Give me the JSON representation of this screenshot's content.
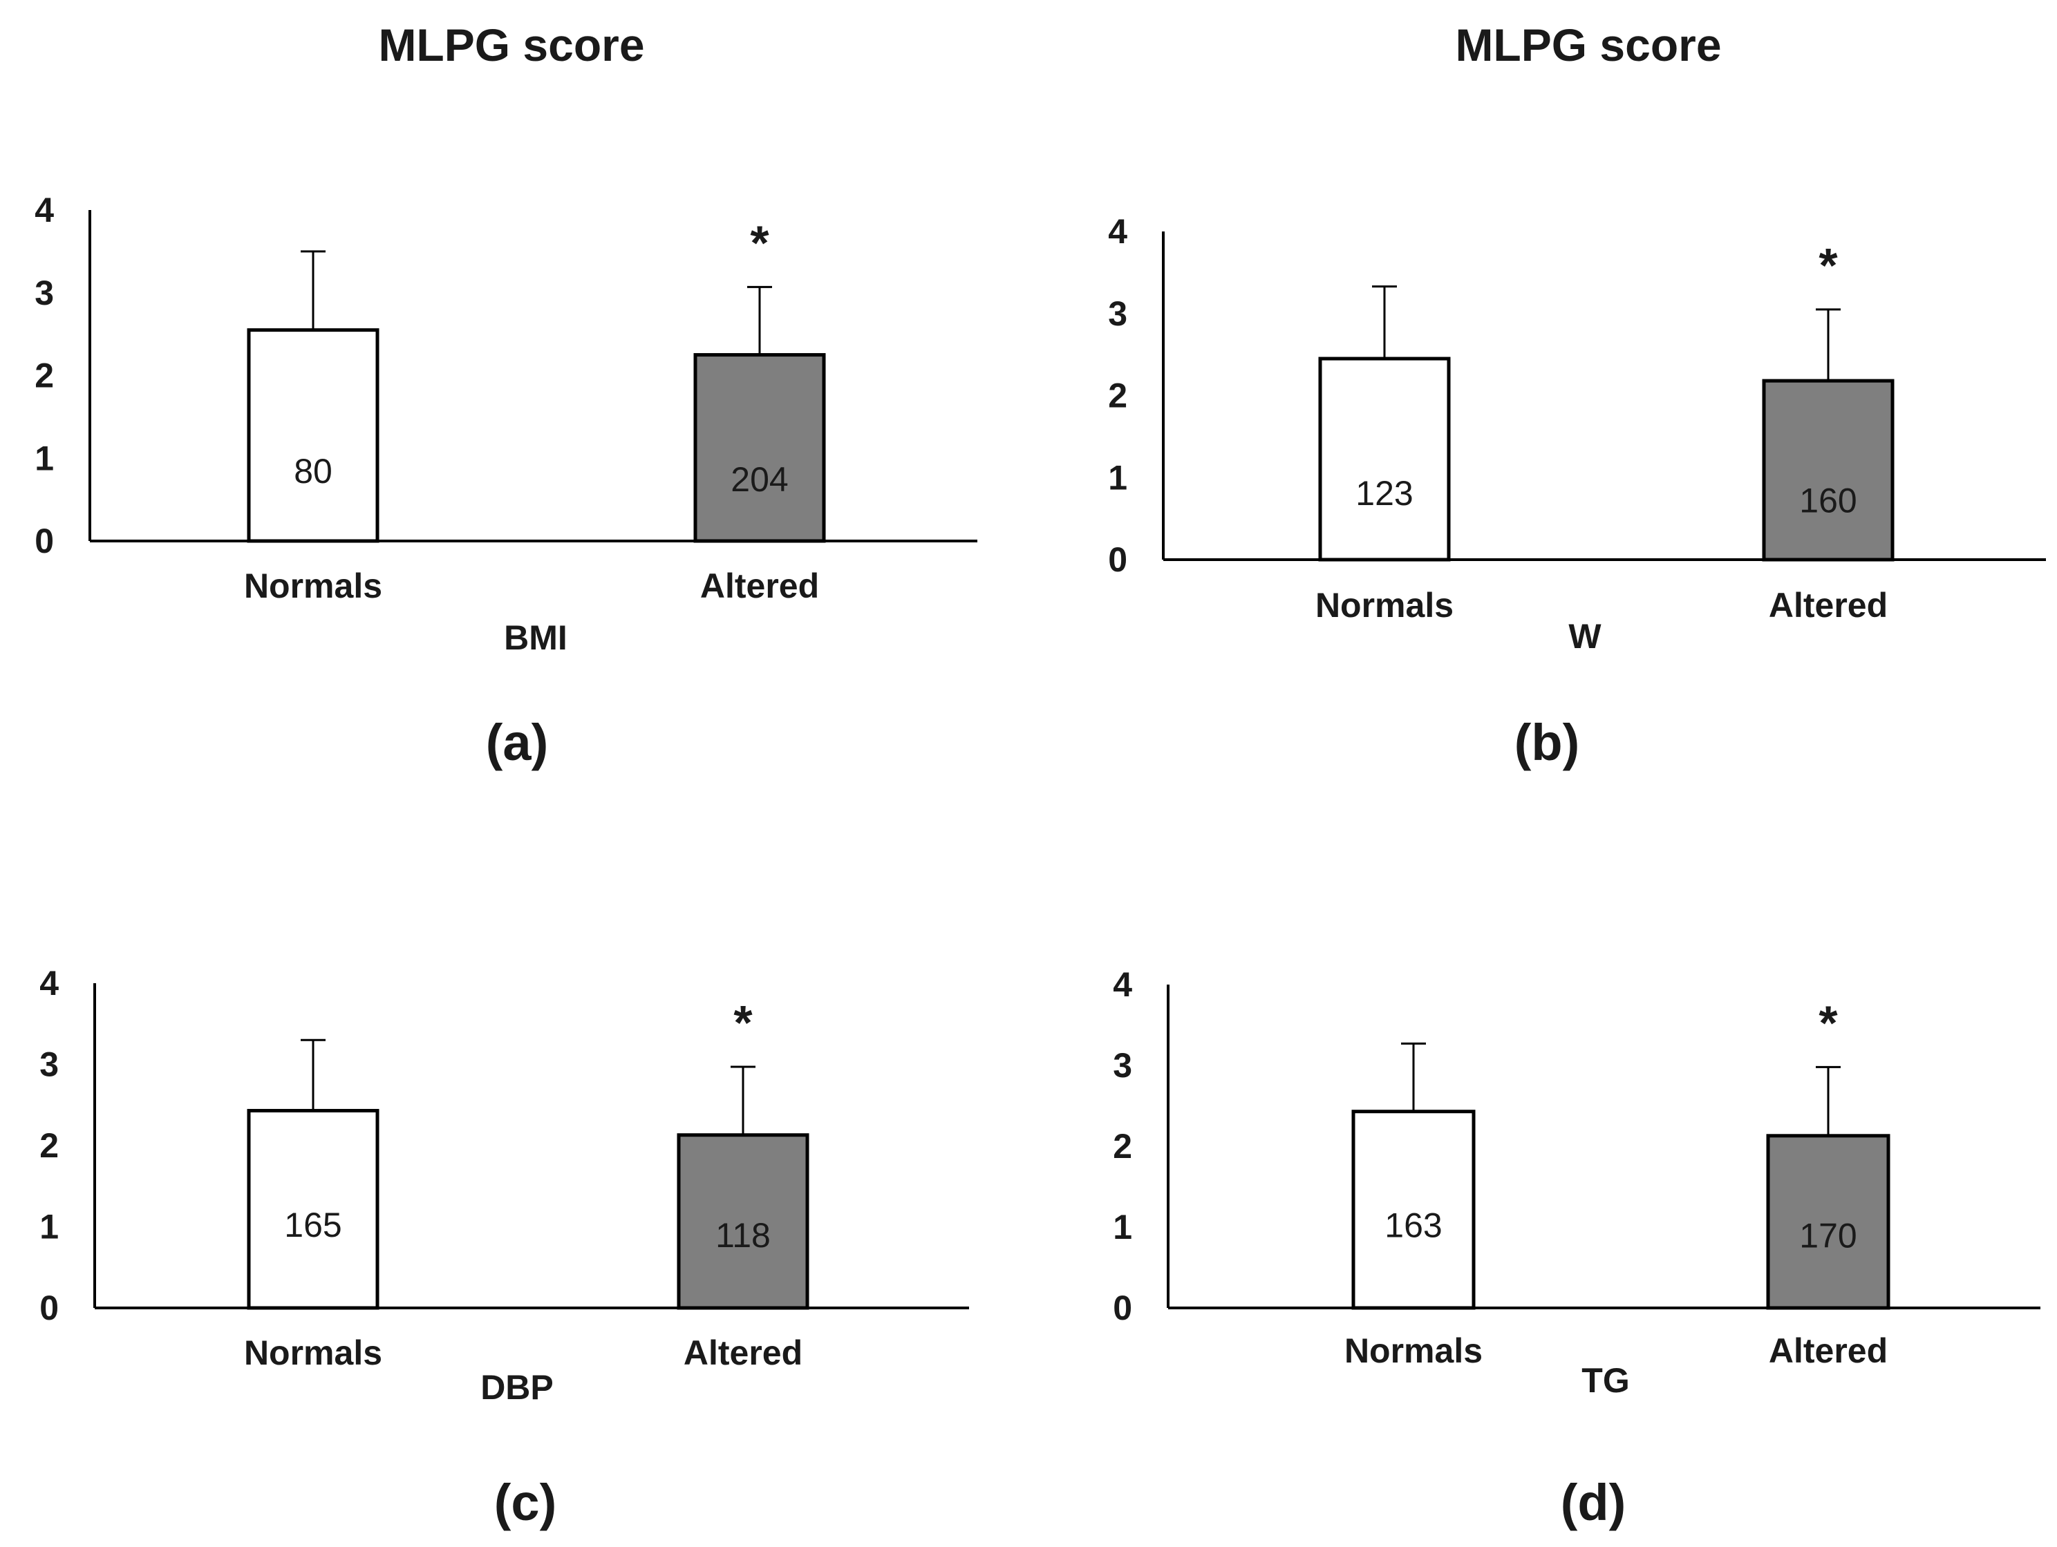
{
  "headers": [
    "MLPG score",
    "MLPG score"
  ],
  "colors": {
    "normals": "#ffffff",
    "altered": "#7f7f7f",
    "stroke": "#000000"
  },
  "chart_data": [
    {
      "type": "bar",
      "panel": "(a)",
      "xlabel": "BMI",
      "ylabel": "MLPG score",
      "ylim": [
        0,
        4
      ],
      "yticks": [
        0,
        1,
        2,
        3,
        4
      ],
      "categories": [
        "Normals",
        "Altered"
      ],
      "values": [
        2.55,
        2.25
      ],
      "error_upper": [
        3.5,
        3.07
      ],
      "bar_labels": [
        "80",
        "204"
      ],
      "annotations": [
        "",
        "*"
      ]
    },
    {
      "type": "bar",
      "panel": "(b)",
      "xlabel": "W",
      "ylabel": "MLPG score",
      "ylim": [
        0,
        4
      ],
      "yticks": [
        0,
        1,
        2,
        3,
        4
      ],
      "categories": [
        "Normals",
        "Altered"
      ],
      "values": [
        2.45,
        2.18
      ],
      "error_upper": [
        3.33,
        3.05
      ],
      "bar_labels": [
        "123",
        "160"
      ],
      "annotations": [
        "",
        "*"
      ]
    },
    {
      "type": "bar",
      "panel": "(c)",
      "xlabel": "DBP",
      "ylabel": "MLPG score",
      "ylim": [
        0,
        4
      ],
      "yticks": [
        0,
        1,
        2,
        3,
        4
      ],
      "categories": [
        "Normals",
        "Altered"
      ],
      "values": [
        2.43,
        2.13
      ],
      "error_upper": [
        3.3,
        2.97
      ],
      "bar_labels": [
        "165",
        "118"
      ],
      "annotations": [
        "",
        "*"
      ]
    },
    {
      "type": "bar",
      "panel": "(d)",
      "xlabel": "TG",
      "ylabel": "MLPG score",
      "ylim": [
        0,
        4
      ],
      "yticks": [
        0,
        1,
        2,
        3,
        4
      ],
      "categories": [
        "Normals",
        "Altered"
      ],
      "values": [
        2.43,
        2.13
      ],
      "error_upper": [
        3.27,
        2.98
      ],
      "bar_labels": [
        "163",
        "170"
      ],
      "annotations": [
        "",
        "*"
      ]
    }
  ]
}
